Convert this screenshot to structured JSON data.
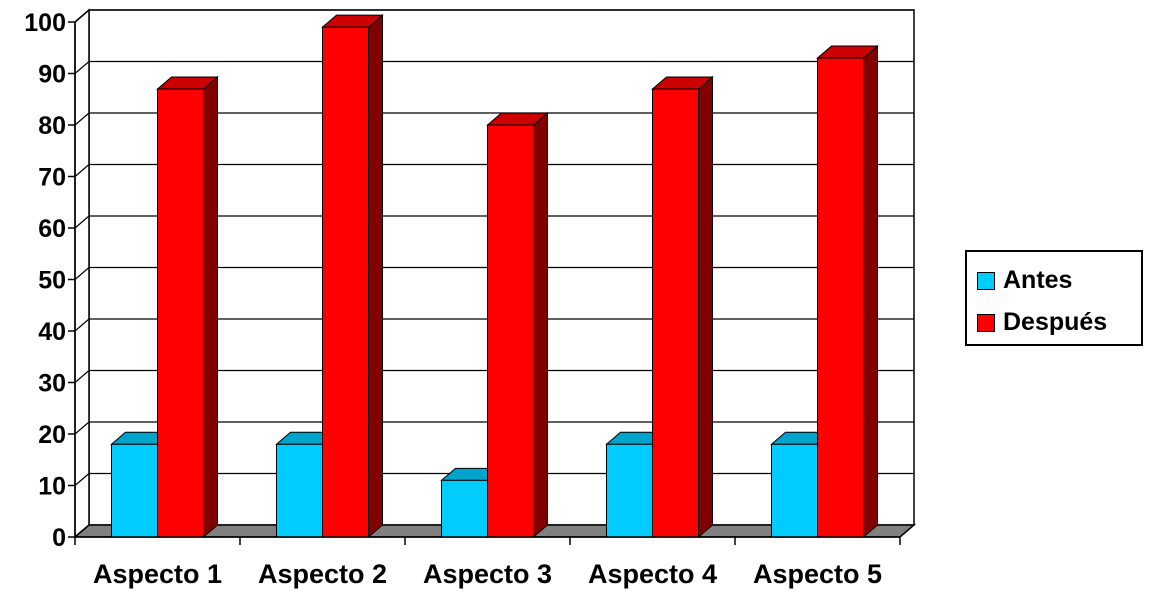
{
  "chart_data": {
    "type": "bar",
    "categories": [
      "Aspecto 1",
      "Aspecto 2",
      "Aspecto 3",
      "Aspecto 4",
      "Aspecto 5"
    ],
    "series": [
      {
        "name": "Antes",
        "values": [
          18,
          18,
          11,
          18,
          18
        ],
        "color": "#00CCFF",
        "side_color": "#0099BB"
      },
      {
        "name": "Después",
        "values": [
          87,
          99,
          80,
          87,
          93
        ],
        "color": "#FF0000",
        "side_color": "#800000"
      }
    ],
    "ylim": [
      0,
      100
    ],
    "yticks": [
      "0",
      "10",
      "20",
      "30",
      "40",
      "50",
      "60",
      "70",
      "80",
      "90",
      "100"
    ],
    "title": "",
    "xlabel": "",
    "ylabel": "",
    "grid": true,
    "legend_position": "right",
    "style": "3d-column"
  }
}
